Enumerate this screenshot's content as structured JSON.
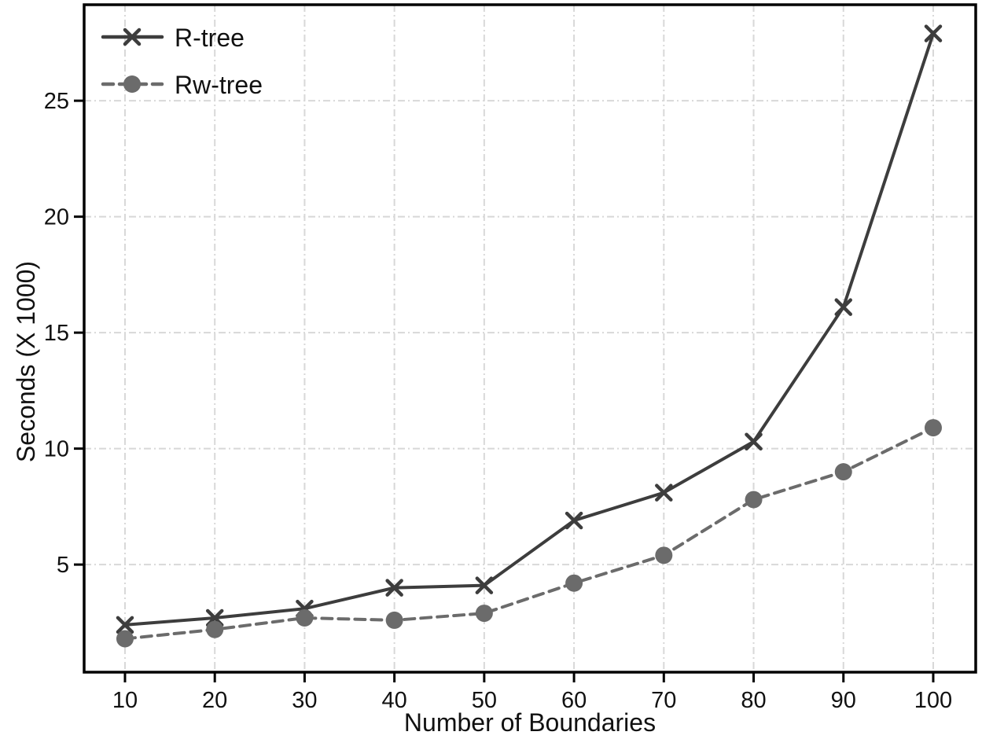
{
  "chart_data": {
    "type": "line",
    "title": "",
    "xlabel": "Number of Boundaries",
    "ylabel": "Seconds (X 1000)",
    "x": [
      10,
      20,
      30,
      40,
      50,
      60,
      70,
      80,
      90,
      100
    ],
    "xticks": [
      10,
      20,
      30,
      40,
      50,
      60,
      70,
      80,
      90,
      100
    ],
    "yticks": [
      5,
      10,
      15,
      20,
      25
    ],
    "xlim": [
      5.45,
      104.73
    ],
    "ylim": [
      0.36,
      29.14
    ],
    "grid": "dash-dot, both axes",
    "legend_position": "upper-left",
    "series": [
      {
        "name": "R-tree",
        "line_style": "solid",
        "marker": "x",
        "color": "#3d3d3d",
        "values": [
          2.4,
          2.7,
          3.1,
          4.0,
          4.1,
          6.9,
          8.1,
          10.3,
          16.1,
          27.9
        ]
      },
      {
        "name": "Rw-tree",
        "line_style": "dashed",
        "marker": "circle",
        "color": "#6b6b6b",
        "values": [
          1.8,
          2.2,
          2.7,
          2.6,
          2.9,
          4.2,
          5.4,
          7.8,
          9.0,
          10.9
        ]
      }
    ],
    "colors": {
      "grid": "#d8d8d8",
      "axis": "#000000",
      "text": "#111111",
      "background": "#ffffff"
    }
  }
}
